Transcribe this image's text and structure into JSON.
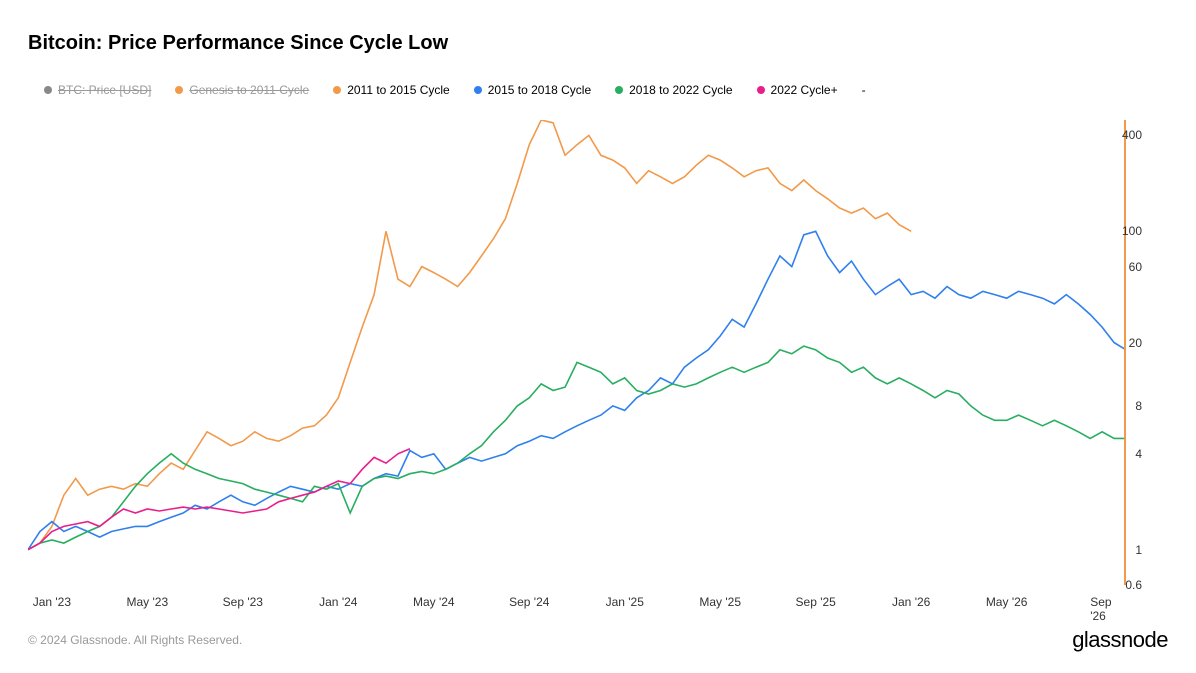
{
  "title": "Bitcoin: Price Performance Since Cycle Low",
  "copyright": "© 2024 Glassnode. All Rights Reserved.",
  "brand": "glassnode",
  "chart": {
    "type": "line",
    "y_scale": "log",
    "ylim": [
      0.6,
      500
    ],
    "y_ticks": [
      0.6,
      1,
      4,
      8,
      20,
      60,
      100,
      400
    ],
    "x_range": [
      0,
      46
    ],
    "x_tick_labels": [
      "Jan '23",
      "May '23",
      "Sep '23",
      "Jan '24",
      "May '24",
      "Sep '24",
      "Jan '25",
      "May '25",
      "Sep '25",
      "Jan '26",
      "May '26",
      "Sep '26"
    ],
    "x_tick_positions": [
      1,
      5,
      9,
      13,
      17,
      21,
      25,
      29,
      33,
      37,
      41,
      45
    ],
    "background_color": "#ffffff",
    "axis_color_right": "#f2994a",
    "tick_fontsize": 12,
    "line_width": 1.6,
    "legend": [
      {
        "label": "BTC: Price [USD]",
        "color": "#888888",
        "strike": true
      },
      {
        "label": "Genesis to 2011 Cycle",
        "color": "#f2994a",
        "strike": true
      },
      {
        "label": "2011 to 2015 Cycle",
        "color": "#f2994a",
        "strike": false
      },
      {
        "label": "2015 to 2018 Cycle",
        "color": "#2f80ed",
        "strike": false
      },
      {
        "label": "2018 to 2022 Cycle",
        "color": "#27ae60",
        "strike": false
      },
      {
        "label": "2022 Cycle+",
        "color": "#e91e8c",
        "strike": false
      },
      {
        "label": "-",
        "color": null,
        "strike": false
      }
    ],
    "series": [
      {
        "name": "2011 to 2015 Cycle",
        "color": "#f2994a",
        "data": [
          [
            0,
            1.0
          ],
          [
            0.5,
            1.1
          ],
          [
            1,
            1.4
          ],
          [
            1.5,
            2.2
          ],
          [
            2,
            2.8
          ],
          [
            2.5,
            2.2
          ],
          [
            3,
            2.4
          ],
          [
            3.5,
            2.5
          ],
          [
            4,
            2.4
          ],
          [
            4.5,
            2.6
          ],
          [
            5,
            2.5
          ],
          [
            5.5,
            3.0
          ],
          [
            6,
            3.5
          ],
          [
            6.5,
            3.2
          ],
          [
            7,
            4.2
          ],
          [
            7.5,
            5.5
          ],
          [
            8,
            5.0
          ],
          [
            8.5,
            4.5
          ],
          [
            9,
            4.8
          ],
          [
            9.5,
            5.5
          ],
          [
            10,
            5.0
          ],
          [
            10.5,
            4.8
          ],
          [
            11,
            5.2
          ],
          [
            11.5,
            5.8
          ],
          [
            12,
            6.0
          ],
          [
            12.5,
            7.0
          ],
          [
            13,
            9.0
          ],
          [
            13.5,
            15
          ],
          [
            14,
            25
          ],
          [
            14.5,
            40
          ],
          [
            15,
            100
          ],
          [
            15.5,
            50
          ],
          [
            16,
            45
          ],
          [
            16.5,
            60
          ],
          [
            17,
            55
          ],
          [
            17.5,
            50
          ],
          [
            18,
            45
          ],
          [
            18.5,
            55
          ],
          [
            19,
            70
          ],
          [
            19.5,
            90
          ],
          [
            20,
            120
          ],
          [
            20.5,
            200
          ],
          [
            21,
            350
          ],
          [
            21.5,
            500
          ],
          [
            22,
            480
          ],
          [
            22.5,
            300
          ],
          [
            23,
            350
          ],
          [
            23.5,
            400
          ],
          [
            24,
            300
          ],
          [
            24.5,
            280
          ],
          [
            25,
            250
          ],
          [
            25.5,
            200
          ],
          [
            26,
            240
          ],
          [
            26.5,
            220
          ],
          [
            27,
            200
          ],
          [
            27.5,
            220
          ],
          [
            28,
            260
          ],
          [
            28.5,
            300
          ],
          [
            29,
            280
          ],
          [
            29.5,
            250
          ],
          [
            30,
            220
          ],
          [
            30.5,
            240
          ],
          [
            31,
            250
          ],
          [
            31.5,
            200
          ],
          [
            32,
            180
          ],
          [
            32.5,
            210
          ],
          [
            33,
            180
          ],
          [
            33.5,
            160
          ],
          [
            34,
            140
          ],
          [
            34.5,
            130
          ],
          [
            35,
            140
          ],
          [
            35.5,
            120
          ],
          [
            36,
            130
          ],
          [
            36.5,
            110
          ],
          [
            37,
            100
          ]
        ]
      },
      {
        "name": "2015 to 2018 Cycle",
        "color": "#2f80ed",
        "data": [
          [
            0,
            1.0
          ],
          [
            0.5,
            1.3
          ],
          [
            1,
            1.5
          ],
          [
            1.5,
            1.3
          ],
          [
            2,
            1.4
          ],
          [
            2.5,
            1.3
          ],
          [
            3,
            1.2
          ],
          [
            3.5,
            1.3
          ],
          [
            4,
            1.35
          ],
          [
            4.5,
            1.4
          ],
          [
            5,
            1.4
          ],
          [
            5.5,
            1.5
          ],
          [
            6,
            1.6
          ],
          [
            6.5,
            1.7
          ],
          [
            7,
            1.9
          ],
          [
            7.5,
            1.8
          ],
          [
            8,
            2.0
          ],
          [
            8.5,
            2.2
          ],
          [
            9,
            2.0
          ],
          [
            9.5,
            1.9
          ],
          [
            10,
            2.1
          ],
          [
            10.5,
            2.3
          ],
          [
            11,
            2.5
          ],
          [
            11.5,
            2.4
          ],
          [
            12,
            2.3
          ],
          [
            12.5,
            2.5
          ],
          [
            13,
            2.4
          ],
          [
            13.5,
            2.6
          ],
          [
            14,
            2.5
          ],
          [
            14.5,
            2.8
          ],
          [
            15,
            3.0
          ],
          [
            15.5,
            2.9
          ],
          [
            16,
            4.2
          ],
          [
            16.5,
            3.8
          ],
          [
            17,
            4.0
          ],
          [
            17.5,
            3.2
          ],
          [
            18,
            3.5
          ],
          [
            18.5,
            3.8
          ],
          [
            19,
            3.6
          ],
          [
            19.5,
            3.8
          ],
          [
            20,
            4.0
          ],
          [
            20.5,
            4.5
          ],
          [
            21,
            4.8
          ],
          [
            21.5,
            5.2
          ],
          [
            22,
            5.0
          ],
          [
            22.5,
            5.5
          ],
          [
            23,
            6.0
          ],
          [
            23.5,
            6.5
          ],
          [
            24,
            7.0
          ],
          [
            24.5,
            8.0
          ],
          [
            25,
            7.5
          ],
          [
            25.5,
            9.0
          ],
          [
            26,
            10
          ],
          [
            26.5,
            12
          ],
          [
            27,
            11
          ],
          [
            27.5,
            14
          ],
          [
            28,
            16
          ],
          [
            28.5,
            18
          ],
          [
            29,
            22
          ],
          [
            29.5,
            28
          ],
          [
            30,
            25
          ],
          [
            30.5,
            35
          ],
          [
            31,
            50
          ],
          [
            31.5,
            70
          ],
          [
            32,
            60
          ],
          [
            32.5,
            95
          ],
          [
            33,
            100
          ],
          [
            33.5,
            70
          ],
          [
            34,
            55
          ],
          [
            34.5,
            65
          ],
          [
            35,
            50
          ],
          [
            35.5,
            40
          ],
          [
            36,
            45
          ],
          [
            36.5,
            50
          ],
          [
            37,
            40
          ],
          [
            37.5,
            42
          ],
          [
            38,
            38
          ],
          [
            38.5,
            45
          ],
          [
            39,
            40
          ],
          [
            39.5,
            38
          ],
          [
            40,
            42
          ],
          [
            40.5,
            40
          ],
          [
            41,
            38
          ],
          [
            41.5,
            42
          ],
          [
            42,
            40
          ],
          [
            42.5,
            38
          ],
          [
            43,
            35
          ],
          [
            43.5,
            40
          ],
          [
            44,
            35
          ],
          [
            44.5,
            30
          ],
          [
            45,
            25
          ],
          [
            45.5,
            20
          ],
          [
            46,
            18
          ]
        ]
      },
      {
        "name": "2018 to 2022 Cycle",
        "color": "#27ae60",
        "data": [
          [
            0,
            1.0
          ],
          [
            0.5,
            1.1
          ],
          [
            1,
            1.15
          ],
          [
            1.5,
            1.1
          ],
          [
            2,
            1.2
          ],
          [
            2.5,
            1.3
          ],
          [
            3,
            1.4
          ],
          [
            3.5,
            1.6
          ],
          [
            4,
            2.0
          ],
          [
            4.5,
            2.5
          ],
          [
            5,
            3.0
          ],
          [
            5.5,
            3.5
          ],
          [
            6,
            4.0
          ],
          [
            6.5,
            3.5
          ],
          [
            7,
            3.2
          ],
          [
            7.5,
            3.0
          ],
          [
            8,
            2.8
          ],
          [
            8.5,
            2.7
          ],
          [
            9,
            2.6
          ],
          [
            9.5,
            2.4
          ],
          [
            10,
            2.3
          ],
          [
            10.5,
            2.2
          ],
          [
            11,
            2.1
          ],
          [
            11.5,
            2.0
          ],
          [
            12,
            2.5
          ],
          [
            12.5,
            2.4
          ],
          [
            13,
            2.6
          ],
          [
            13.5,
            1.7
          ],
          [
            14,
            2.5
          ],
          [
            14.5,
            2.8
          ],
          [
            15,
            2.9
          ],
          [
            15.5,
            2.8
          ],
          [
            16,
            3.0
          ],
          [
            16.5,
            3.1
          ],
          [
            17,
            3.0
          ],
          [
            17.5,
            3.2
          ],
          [
            18,
            3.5
          ],
          [
            18.5,
            4.0
          ],
          [
            19,
            4.5
          ],
          [
            19.5,
            5.5
          ],
          [
            20,
            6.5
          ],
          [
            20.5,
            8.0
          ],
          [
            21,
            9.0
          ],
          [
            21.5,
            11
          ],
          [
            22,
            10
          ],
          [
            22.5,
            10.5
          ],
          [
            23,
            15
          ],
          [
            23.5,
            14
          ],
          [
            24,
            13
          ],
          [
            24.5,
            11
          ],
          [
            25,
            12
          ],
          [
            25.5,
            10
          ],
          [
            26,
            9.5
          ],
          [
            26.5,
            10
          ],
          [
            27,
            11
          ],
          [
            27.5,
            10.5
          ],
          [
            28,
            11
          ],
          [
            28.5,
            12
          ],
          [
            29,
            13
          ],
          [
            29.5,
            14
          ],
          [
            30,
            13
          ],
          [
            30.5,
            14
          ],
          [
            31,
            15
          ],
          [
            31.5,
            18
          ],
          [
            32,
            17
          ],
          [
            32.5,
            19
          ],
          [
            33,
            18
          ],
          [
            33.5,
            16
          ],
          [
            34,
            15
          ],
          [
            34.5,
            13
          ],
          [
            35,
            14
          ],
          [
            35.5,
            12
          ],
          [
            36,
            11
          ],
          [
            36.5,
            12
          ],
          [
            37,
            11
          ],
          [
            37.5,
            10
          ],
          [
            38,
            9
          ],
          [
            38.5,
            10
          ],
          [
            39,
            9.5
          ],
          [
            39.5,
            8
          ],
          [
            40,
            7
          ],
          [
            40.5,
            6.5
          ],
          [
            41,
            6.5
          ],
          [
            41.5,
            7
          ],
          [
            42,
            6.5
          ],
          [
            42.5,
            6
          ],
          [
            43,
            6.5
          ],
          [
            43.5,
            6
          ],
          [
            44,
            5.5
          ],
          [
            44.5,
            5
          ],
          [
            45,
            5.5
          ],
          [
            45.5,
            5
          ],
          [
            46,
            5
          ]
        ]
      },
      {
        "name": "2022 Cycle+",
        "color": "#e91e8c",
        "data": [
          [
            0,
            1.0
          ],
          [
            0.5,
            1.1
          ],
          [
            1,
            1.3
          ],
          [
            1.5,
            1.4
          ],
          [
            2,
            1.45
          ],
          [
            2.5,
            1.5
          ],
          [
            3,
            1.4
          ],
          [
            3.5,
            1.6
          ],
          [
            4,
            1.8
          ],
          [
            4.5,
            1.7
          ],
          [
            5,
            1.8
          ],
          [
            5.5,
            1.75
          ],
          [
            6,
            1.8
          ],
          [
            6.5,
            1.85
          ],
          [
            7,
            1.8
          ],
          [
            7.5,
            1.85
          ],
          [
            8,
            1.8
          ],
          [
            8.5,
            1.75
          ],
          [
            9,
            1.7
          ],
          [
            9.5,
            1.75
          ],
          [
            10,
            1.8
          ],
          [
            10.5,
            2.0
          ],
          [
            11,
            2.1
          ],
          [
            11.5,
            2.2
          ],
          [
            12,
            2.3
          ],
          [
            12.5,
            2.5
          ],
          [
            13,
            2.7
          ],
          [
            13.5,
            2.6
          ],
          [
            14,
            3.2
          ],
          [
            14.5,
            3.8
          ],
          [
            15,
            3.5
          ],
          [
            15.5,
            4.0
          ],
          [
            16,
            4.3
          ]
        ]
      }
    ]
  }
}
